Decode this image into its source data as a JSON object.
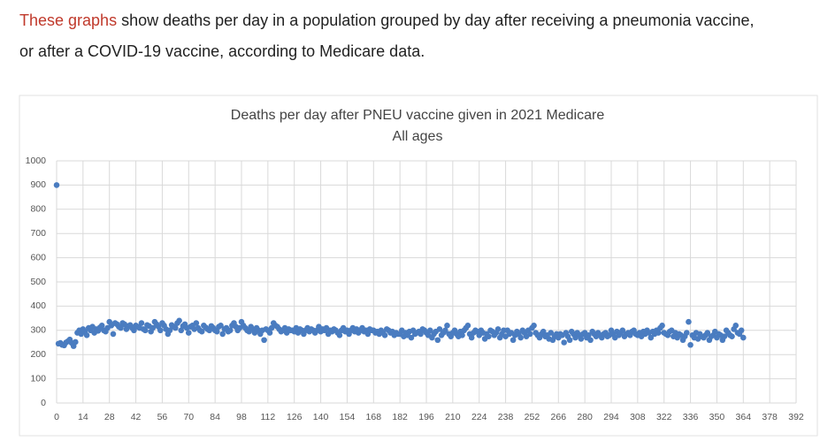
{
  "intro": {
    "link": "These graphs",
    "line1": " show deaths per day in a population grouped by day after receiving a pneumonia vaccine,",
    "line2": "or after a COVID-19 vaccine, according to Medicare data."
  },
  "chart_data": {
    "type": "scatter",
    "title": "Deaths per day after PNEU vaccine given in 2021 Medicare",
    "subtitle": "All ages",
    "xlim": [
      0,
      392
    ],
    "xticks": [
      0,
      14,
      28,
      42,
      56,
      70,
      84,
      98,
      112,
      126,
      140,
      154,
      168,
      182,
      196,
      210,
      224,
      238,
      252,
      266,
      280,
      294,
      308,
      322,
      336,
      350,
      364,
      378,
      392
    ],
    "ylim": [
      0,
      1000
    ],
    "yticks": [
      0,
      100,
      200,
      300,
      400,
      500,
      600,
      700,
      800,
      900,
      1000
    ],
    "grid": true,
    "series": [
      {
        "color": "#4a7cc0",
        "x": [
          0,
          1,
          2,
          3,
          4,
          5,
          6,
          7,
          8,
          9,
          10,
          11,
          12,
          13,
          14,
          15,
          16,
          17,
          18,
          19,
          20,
          21,
          22,
          23,
          24,
          25,
          26,
          27,
          28,
          29,
          30,
          31,
          32,
          33,
          34,
          35,
          36,
          37,
          38,
          39,
          40,
          41,
          42,
          43,
          44,
          45,
          46,
          47,
          48,
          49,
          50,
          51,
          52,
          53,
          54,
          55,
          56,
          57,
          58,
          59,
          60,
          61,
          62,
          63,
          64,
          65,
          66,
          67,
          68,
          69,
          70,
          71,
          72,
          73,
          74,
          75,
          76,
          77,
          78,
          79,
          80,
          81,
          82,
          83,
          84,
          85,
          86,
          87,
          88,
          89,
          90,
          91,
          92,
          93,
          94,
          95,
          96,
          97,
          98,
          99,
          100,
          101,
          102,
          103,
          104,
          105,
          106,
          107,
          108,
          109,
          110,
          111,
          112,
          113,
          114,
          115,
          116,
          117,
          118,
          119,
          120,
          121,
          122,
          123,
          124,
          125,
          126,
          127,
          128,
          129,
          130,
          131,
          132,
          133,
          134,
          135,
          136,
          137,
          138,
          139,
          140,
          141,
          142,
          143,
          144,
          145,
          146,
          147,
          148,
          149,
          150,
          151,
          152,
          153,
          154,
          155,
          156,
          157,
          158,
          159,
          160,
          161,
          162,
          163,
          164,
          165,
          166,
          167,
          168,
          169,
          170,
          171,
          172,
          173,
          174,
          175,
          176,
          177,
          178,
          179,
          180,
          181,
          182,
          183,
          184,
          185,
          186,
          187,
          188,
          189,
          190,
          191,
          192,
          193,
          194,
          195,
          196,
          197,
          198,
          199,
          200,
          201,
          202,
          203,
          204,
          205,
          206,
          207,
          208,
          209,
          210,
          211,
          212,
          213,
          214,
          215,
          216,
          217,
          218,
          219,
          220,
          221,
          222,
          223,
          224,
          225,
          226,
          227,
          228,
          229,
          230,
          231,
          232,
          233,
          234,
          235,
          236,
          237,
          238,
          239,
          240,
          241,
          242,
          243,
          244,
          245,
          246,
          247,
          248,
          249,
          250,
          251,
          252,
          253,
          254,
          255,
          256,
          257,
          258,
          259,
          260,
          261,
          262,
          263,
          264,
          265,
          266,
          267,
          268,
          269,
          270,
          271,
          272,
          273,
          274,
          275,
          276,
          277,
          278,
          279,
          280,
          281,
          282,
          283,
          284,
          285,
          286,
          287,
          288,
          289,
          290,
          291,
          292,
          293,
          294,
          295,
          296,
          297,
          298,
          299,
          300,
          301,
          302,
          303,
          304,
          305,
          306,
          307,
          308,
          309,
          310,
          311,
          312,
          313,
          314,
          315,
          316,
          317,
          318,
          319,
          320,
          321,
          322,
          323,
          324,
          325,
          326,
          327,
          328,
          329,
          330,
          331,
          332,
          333,
          334,
          335,
          336,
          337,
          338,
          339,
          340,
          341,
          342,
          343,
          344,
          345,
          346,
          347,
          348,
          349,
          350,
          351,
          352,
          353,
          354,
          355,
          356,
          357,
          358,
          359,
          360,
          361,
          362,
          363,
          364
        ],
        "values": [
          900,
          245,
          248,
          240,
          238,
          250,
          255,
          262,
          248,
          235,
          252,
          290,
          300,
          285,
          305,
          295,
          280,
          310,
          300,
          315,
          290,
          305,
          298,
          312,
          320,
          300,
          295,
          310,
          335,
          320,
          285,
          330,
          325,
          315,
          310,
          330,
          325,
          305,
          318,
          322,
          310,
          300,
          320,
          315,
          310,
          330,
          305,
          300,
          322,
          318,
          295,
          310,
          335,
          325,
          315,
          300,
          330,
          320,
          305,
          285,
          300,
          322,
          315,
          310,
          330,
          340,
          300,
          318,
          325,
          310,
          290,
          315,
          320,
          305,
          330,
          310,
          300,
          295,
          320,
          312,
          305,
          300,
          318,
          310,
          300,
          295,
          315,
          320,
          285,
          305,
          310,
          295,
          300,
          320,
          330,
          315,
          300,
          310,
          335,
          320,
          310,
          300,
          295,
          315,
          305,
          290,
          310,
          300,
          285,
          300,
          260,
          305,
          300,
          290,
          310,
          330,
          320,
          315,
          305,
          295,
          300,
          310,
          290,
          305,
          300,
          300,
          295,
          310,
          290,
          305,
          300,
          285,
          300,
          310,
          295,
          305,
          300,
          290,
          300,
          315,
          295,
          305,
          300,
          310,
          285,
          300,
          295,
          305,
          300,
          290,
          280,
          300,
          310,
          295,
          300,
          285,
          300,
          310,
          295,
          305,
          290,
          300,
          310,
          295,
          300,
          285,
          305,
          300,
          300,
          290,
          295,
          285,
          300,
          290,
          280,
          305,
          300,
          290,
          295,
          280,
          290,
          285,
          285,
          300,
          275,
          290,
          280,
          295,
          270,
          300,
          285,
          290,
          295,
          285,
          305,
          300,
          290,
          280,
          300,
          270,
          285,
          295,
          260,
          305,
          280,
          290,
          300,
          320,
          285,
          275,
          290,
          300,
          285,
          275,
          295,
          280,
          300,
          310,
          320,
          285,
          270,
          290,
          300,
          295,
          280,
          300,
          290,
          265,
          285,
          275,
          300,
          295,
          280,
          290,
          305,
          270,
          285,
          300,
          275,
          300,
          285,
          290,
          260,
          280,
          295,
          285,
          270,
          300,
          290,
          275,
          300,
          285,
          310,
          320,
          290,
          280,
          270,
          285,
          295,
          275,
          280,
          265,
          290,
          260,
          275,
          285,
          270,
          285,
          280,
          250,
          290,
          275,
          260,
          295,
          285,
          270,
          290,
          280,
          265,
          285,
          290,
          270,
          280,
          260,
          295,
          285,
          275,
          290,
          280,
          270,
          285,
          290,
          275,
          280,
          300,
          285,
          270,
          295,
          280,
          290,
          300,
          275,
          285,
          290,
          280,
          295,
          300,
          285,
          280,
          290,
          275,
          295,
          285,
          300,
          290,
          270,
          295,
          285,
          300,
          290,
          310,
          320,
          290,
          285,
          280,
          295,
          300,
          275,
          290,
          270,
          285,
          280,
          260,
          275,
          290,
          335,
          240,
          280,
          270,
          290,
          265,
          285,
          275,
          270,
          280,
          290,
          260,
          275,
          280,
          295,
          270,
          285,
          280,
          260,
          275,
          300,
          290,
          280,
          275,
          305,
          320,
          290,
          285,
          300,
          270
        ]
      }
    ]
  }
}
